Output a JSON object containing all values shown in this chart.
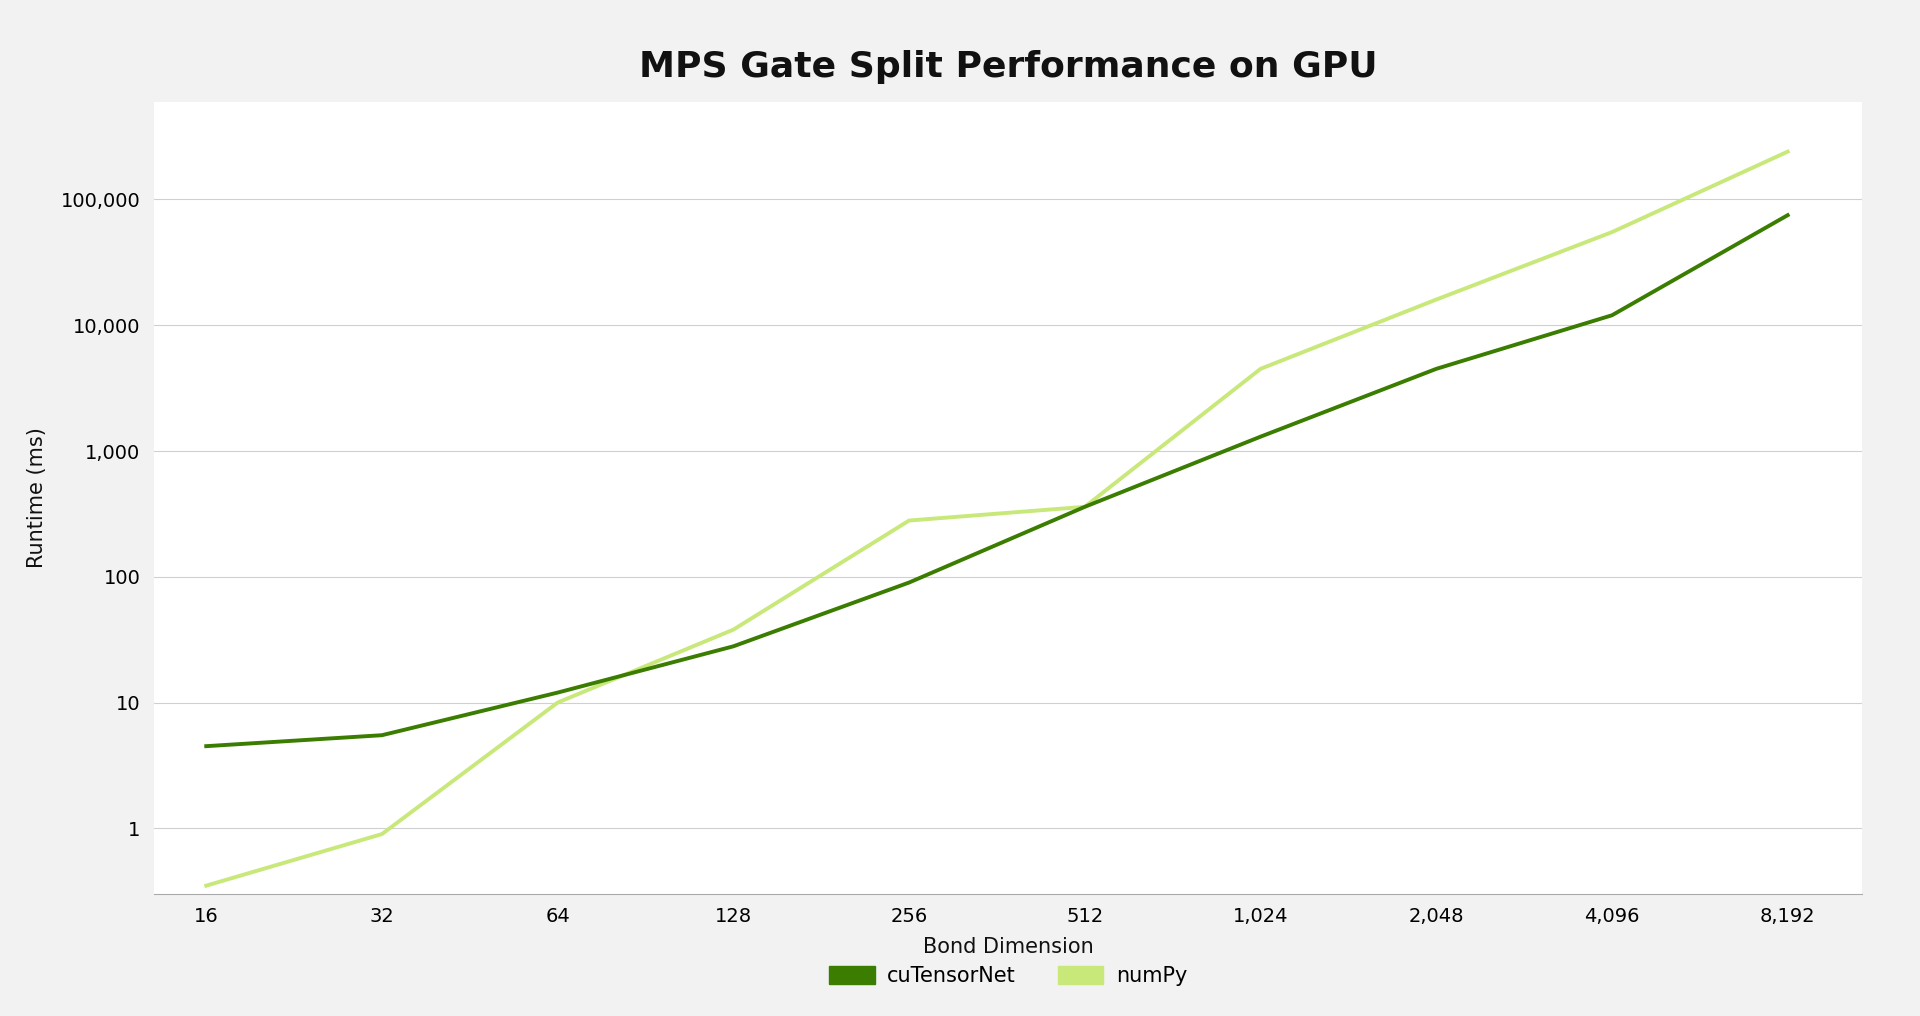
{
  "title": "MPS Gate Split Performance on GPU",
  "xlabel": "Bond Dimension",
  "ylabel": "Runtime (ms)",
  "background_color": "#ffffff",
  "outer_bg": "#f2f2f2",
  "grid_color": "#d0d0d0",
  "x_values": [
    16,
    32,
    64,
    128,
    256,
    512,
    1024,
    2048,
    4096,
    8192
  ],
  "cuTensorNet_y": [
    4.5,
    5.5,
    12,
    28,
    90,
    360,
    1300,
    4500,
    12000,
    75000
  ],
  "numPy_y": [
    0.35,
    0.9,
    10,
    38,
    280,
    360,
    4500,
    16000,
    55000,
    240000
  ],
  "cuTensorNet_color": "#3a7d00",
  "numPy_color": "#c8e87a",
  "line_width": 2.8,
  "title_fontsize": 26,
  "axis_label_fontsize": 15,
  "tick_fontsize": 14,
  "legend_fontsize": 15,
  "x_tick_labels": [
    "16",
    "32",
    "64",
    "128",
    "256",
    "512",
    "1,024",
    "2,048",
    "4,096",
    "8,192"
  ],
  "y_tick_labels": [
    "1",
    "10",
    "100",
    "1,000",
    "10,000",
    "100,000"
  ],
  "y_tick_values": [
    1,
    10,
    100,
    1000,
    10000,
    100000
  ],
  "ylim": [
    0.3,
    600000
  ],
  "xlim_left": 13,
  "xlim_right": 11000,
  "legend_labels": [
    "cuTensorNet",
    "numPy"
  ]
}
